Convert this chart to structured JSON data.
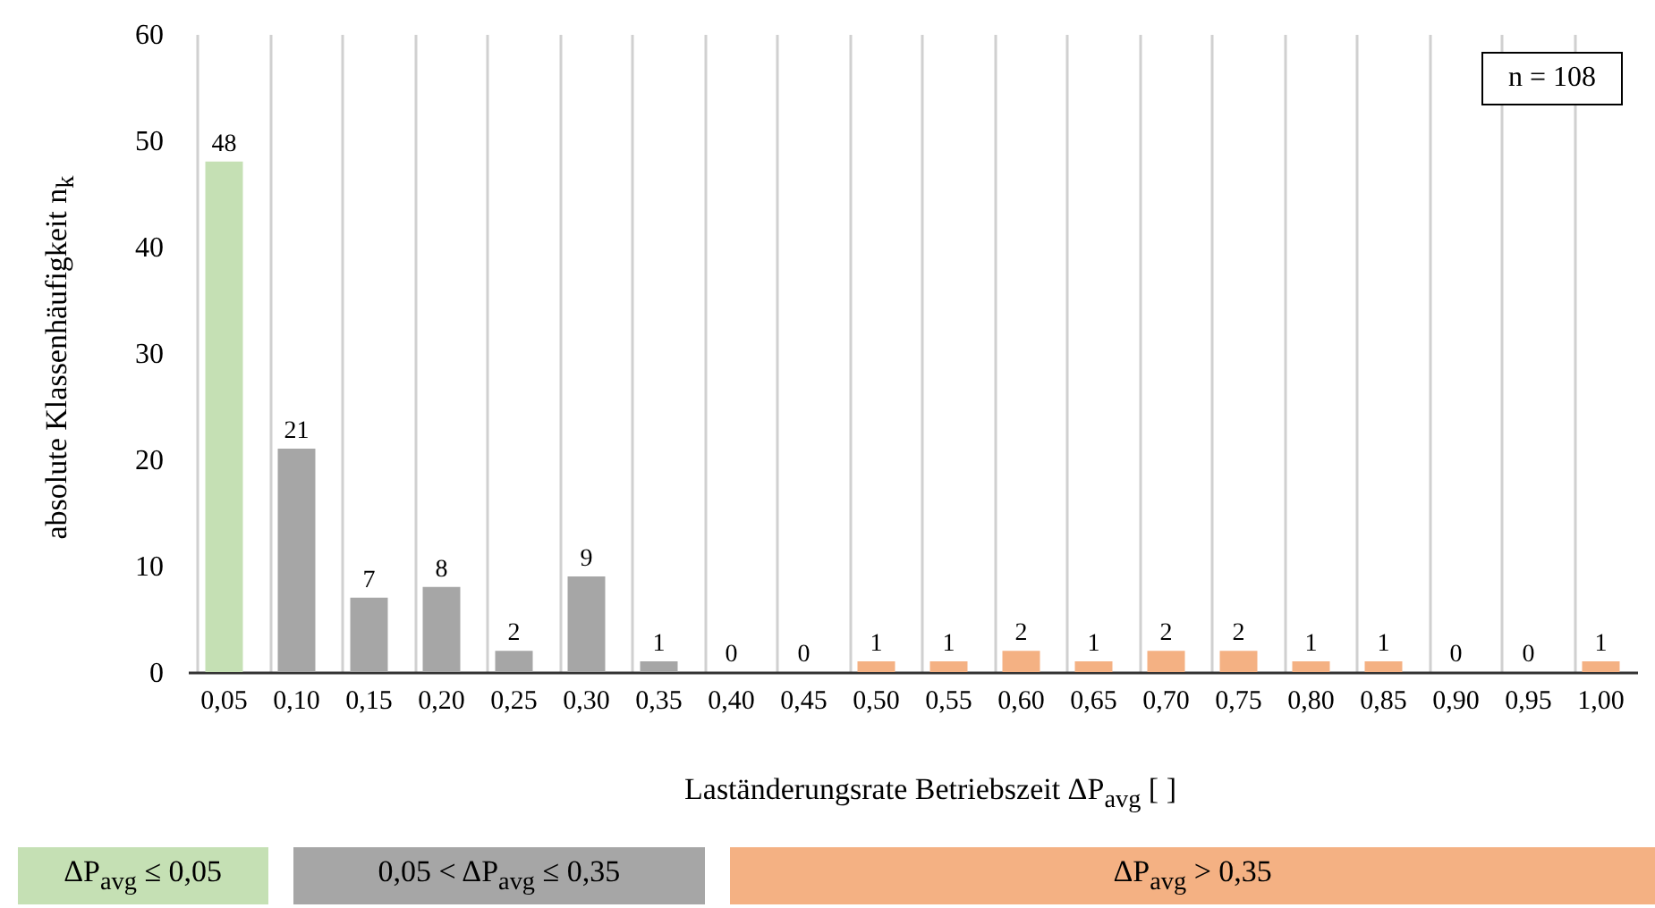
{
  "chart_data": {
    "type": "bar",
    "xlabel": "Laständerungsrate Betriebszeit ΔP$_{avg}$ [ ]",
    "ylabel": "absolute Klassenhäufigkeit n$_{k}$",
    "categories": [
      "0,05",
      "0,10",
      "0,15",
      "0,20",
      "0,25",
      "0,30",
      "0,35",
      "0,40",
      "0,45",
      "0,50",
      "0,55",
      "0,60",
      "0,65",
      "0,70",
      "0,75",
      "0,80",
      "0,85",
      "0,90",
      "0,95",
      "1,00"
    ],
    "stacked": true,
    "series": [
      {
        "name": "ΔP$_{avg}$ ≤ 0,05",
        "color": "#c5e0b4",
        "values": [
          48,
          null,
          null,
          null,
          null,
          null,
          null,
          null,
          null,
          null,
          null,
          null,
          null,
          null,
          null,
          null,
          null,
          null,
          null,
          null
        ]
      },
      {
        "name": "0,05 < ΔP$_{avg}$ ≤ 0,35",
        "color": "#a6a6a6",
        "values": [
          null,
          21,
          7,
          8,
          2,
          9,
          1,
          null,
          null,
          null,
          null,
          null,
          null,
          null,
          null,
          null,
          null,
          null,
          null,
          null
        ]
      },
      {
        "name": "ΔP$_{avg}$ > 0,35",
        "color": "#f4b183",
        "values": [
          null,
          null,
          null,
          null,
          null,
          null,
          null,
          0,
          0,
          1,
          1,
          2,
          1,
          2,
          2,
          1,
          1,
          0,
          0,
          1
        ]
      }
    ],
    "ylim": [
      0,
      60
    ],
    "yticks": [
      0,
      10,
      20,
      30,
      40,
      50,
      60
    ],
    "grid": "x",
    "data_labels": true,
    "legend": "bottom",
    "annotations": [
      "n = 108"
    ]
  }
}
